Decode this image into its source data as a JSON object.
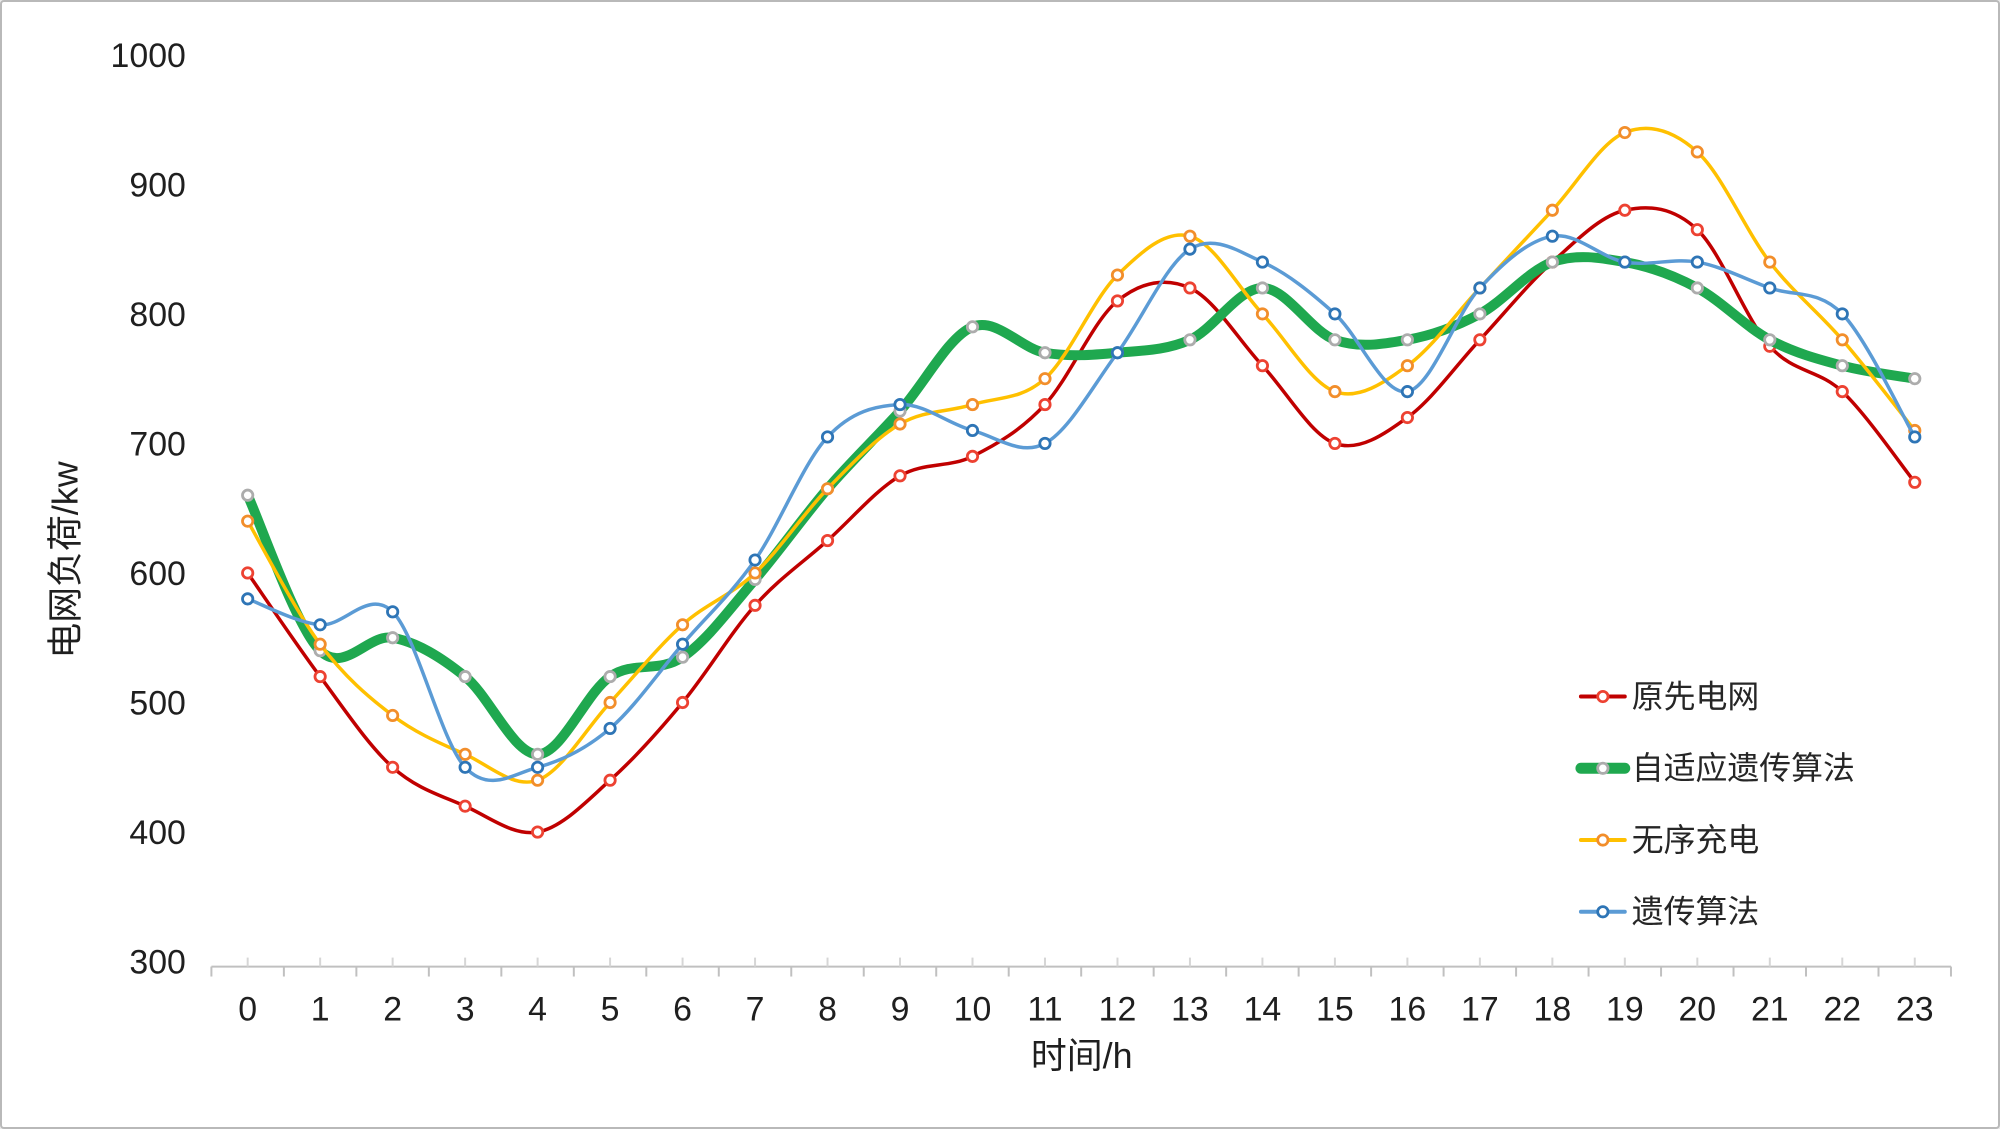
{
  "chart_data": {
    "type": "line",
    "title": "",
    "xlabel": "时间/h",
    "ylabel": "电网负荷/kw",
    "categories": [
      0,
      1,
      2,
      3,
      4,
      5,
      6,
      7,
      8,
      9,
      10,
      11,
      12,
      13,
      14,
      15,
      16,
      17,
      18,
      19,
      20,
      21,
      22,
      23
    ],
    "ylim": [
      300,
      1000
    ],
    "yticks": [
      300,
      400,
      500,
      600,
      700,
      800,
      900,
      1000
    ],
    "grid": "off",
    "smooth_lines": true,
    "axis_color": "#c0c0c0",
    "tick_color": "#d6d6d6",
    "legend_position": "right-middle",
    "series": [
      {
        "name": "原先电网",
        "line_color": "#c00000",
        "marker_ring_color": "#ed4232",
        "marker_fill": "#ffffff",
        "line_width": 3.5,
        "values": [
          600,
          520,
          450,
          420,
          400,
          440,
          500,
          575,
          625,
          675,
          690,
          730,
          810,
          820,
          760,
          700,
          720,
          780,
          840,
          880,
          865,
          775,
          740,
          670
        ]
      },
      {
        "name": "自适应遗传算法",
        "line_color": "#1fa84f",
        "marker_ring_color": "#acacac",
        "marker_fill": "#ffffff",
        "line_width": 10,
        "values": [
          660,
          540,
          550,
          520,
          460,
          520,
          535,
          595,
          665,
          725,
          790,
          770,
          770,
          780,
          820,
          780,
          780,
          800,
          840,
          840,
          820,
          780,
          760,
          750
        ]
      },
      {
        "name": "无序充电",
        "line_color": "#ffc000",
        "marker_ring_color": "#f28e2b",
        "marker_fill": "#ffffff",
        "line_width": 3.5,
        "values": [
          640,
          545,
          490,
          460,
          440,
          500,
          560,
          600,
          665,
          715,
          730,
          750,
          830,
          860,
          800,
          740,
          760,
          820,
          880,
          940,
          925,
          840,
          780,
          710
        ]
      },
      {
        "name": "遗传算法",
        "line_color": "#5b9bd5",
        "marker_ring_color": "#2e75b6",
        "marker_fill": "#ffffff",
        "line_width": 3.5,
        "values": [
          580,
          560,
          570,
          450,
          450,
          480,
          545,
          610,
          705,
          730,
          710,
          700,
          770,
          850,
          840,
          800,
          740,
          820,
          860,
          840,
          840,
          820,
          800,
          705
        ]
      }
    ],
    "legend_items": [
      "原先电网",
      "自适应遗传算法",
      "无序充电",
      "遗传算法"
    ]
  }
}
